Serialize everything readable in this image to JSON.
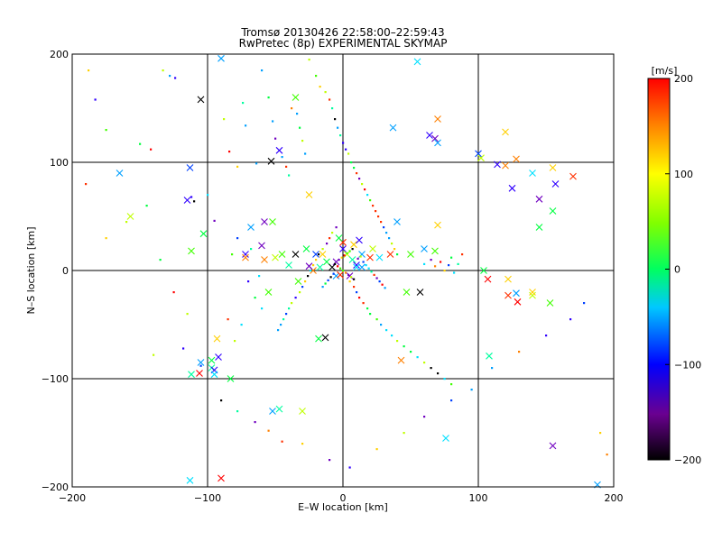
{
  "chart_data": {
    "type": "scatter",
    "title": "Tromsø 20130426 22:58:00–22:59:43",
    "subtitle": "RwPretec (8p) EXPERIMENTAL SKYMAP",
    "xlabel": "E–W location [km]",
    "ylabel": "N–S location [km]",
    "xlim": [
      -200,
      200
    ],
    "ylim": [
      -200,
      200
    ],
    "x_ticks": [
      "−200",
      "−100",
      "0",
      "100",
      "200"
    ],
    "y_ticks": [
      "−200",
      "−100",
      "0",
      "100",
      "200"
    ],
    "grid": "major gridlines at every 100 km",
    "colorbar": {
      "label": "[m/s]",
      "range": [
        -200,
        200
      ],
      "ticks": [
        "200",
        "100",
        "0",
        "−100",
        "−200"
      ],
      "colormap": "black–purple–blue–cyan–green–yellow–orange–red"
    },
    "series": [
      {
        "marker": "x (large)",
        "points": [
          [
            -165,
            90
          ],
          [
            -157,
            50
          ],
          [
            55,
            193
          ],
          [
            -105,
            158
          ],
          [
            -90,
            196
          ],
          [
            37,
            132
          ],
          [
            70,
            140
          ],
          [
            68,
            122
          ],
          [
            70,
            118
          ],
          [
            64,
            125
          ],
          [
            100,
            108
          ],
          [
            102,
            104
          ],
          [
            114,
            98
          ],
          [
            128,
            103
          ],
          [
            140,
            90
          ],
          [
            155,
            95
          ],
          [
            120,
            97
          ],
          [
            125,
            76
          ],
          [
            145,
            66
          ],
          [
            157,
            80
          ],
          [
            170,
            87
          ],
          [
            155,
            55
          ],
          [
            -113,
            95
          ],
          [
            -35,
            160
          ],
          [
            -25,
            70
          ],
          [
            -52,
            45
          ],
          [
            -58,
            45
          ],
          [
            -60,
            23
          ],
          [
            -112,
            18
          ],
          [
            -103,
            34
          ],
          [
            -72,
            15
          ],
          [
            -72,
            12
          ],
          [
            -58,
            10
          ],
          [
            -50,
            12
          ],
          [
            -45,
            15
          ],
          [
            -40,
            5
          ],
          [
            -35,
            15
          ],
          [
            -27,
            20
          ],
          [
            -20,
            15
          ],
          [
            -15,
            15
          ],
          [
            -12,
            8
          ],
          [
            -5,
            8
          ],
          [
            0,
            20
          ],
          [
            3,
            15
          ],
          [
            7,
            10
          ],
          [
            10,
            5
          ],
          [
            14,
            15
          ],
          [
            20,
            12
          ],
          [
            27,
            12
          ],
          [
            35,
            15
          ],
          [
            40,
            45
          ],
          [
            50,
            15
          ],
          [
            60,
            20
          ],
          [
            70,
            42
          ],
          [
            -55,
            -20
          ],
          [
            -33,
            -10
          ],
          [
            47,
            -20
          ],
          [
            57,
            -20
          ],
          [
            104,
            0
          ],
          [
            107,
            -8
          ],
          [
            122,
            -8
          ],
          [
            122,
            -23
          ],
          [
            128,
            -21
          ],
          [
            129,
            -29
          ],
          [
            140,
            -23
          ],
          [
            140,
            -20
          ],
          [
            153,
            -30
          ],
          [
            -93,
            -63
          ],
          [
            -92,
            -80
          ],
          [
            -97,
            -83
          ],
          [
            -97,
            -90
          ],
          [
            -95,
            -92
          ],
          [
            -95,
            -96
          ],
          [
            -105,
            -85
          ],
          [
            -106,
            -95
          ],
          [
            -112,
            -96
          ],
          [
            -83,
            -100
          ],
          [
            -47,
            -128
          ],
          [
            -52,
            -130
          ],
          [
            -30,
            -130
          ],
          [
            -18,
            -63
          ],
          [
            -13,
            -62
          ],
          [
            43,
            -83
          ],
          [
            108,
            -79
          ],
          [
            155,
            -162
          ],
          [
            -113,
            -194
          ],
          [
            -90,
            -192
          ],
          [
            76,
            -155
          ],
          [
            188,
            -198
          ],
          [
            68,
            18
          ],
          [
            -115,
            65
          ],
          [
            -68,
            40
          ],
          [
            120,
            128
          ],
          [
            -47,
            111
          ],
          [
            -53,
            101
          ],
          [
            145,
            40
          ],
          [
            -22,
            0
          ],
          [
            -17,
            3
          ],
          [
            -5,
            -5
          ],
          [
            5,
            -5
          ],
          [
            10,
            3
          ],
          [
            14,
            3
          ],
          [
            0,
            26
          ],
          [
            -8,
            3
          ],
          [
            -2,
            -4
          ],
          [
            8,
            24
          ],
          [
            -3,
            30
          ],
          [
            12,
            28
          ],
          [
            22,
            20
          ],
          [
            -25,
            4
          ]
        ]
      },
      {
        "marker": "dot (small)",
        "points": [
          [
            -188,
            185
          ],
          [
            -183,
            158
          ],
          [
            -175,
            130
          ],
          [
            -150,
            117
          ],
          [
            -142,
            112
          ],
          [
            -133,
            185
          ],
          [
            -128,
            180
          ],
          [
            -124,
            178
          ],
          [
            -112,
            68
          ],
          [
            -110,
            64
          ],
          [
            -100,
            70
          ],
          [
            -95,
            46
          ],
          [
            -88,
            140
          ],
          [
            -84,
            110
          ],
          [
            -78,
            96
          ],
          [
            -74,
            155
          ],
          [
            -72,
            134
          ],
          [
            -64,
            99
          ],
          [
            -60,
            185
          ],
          [
            -55,
            160
          ],
          [
            -52,
            138
          ],
          [
            -50,
            122
          ],
          [
            -45,
            105
          ],
          [
            -42,
            96
          ],
          [
            -40,
            88
          ],
          [
            -38,
            150
          ],
          [
            -34,
            145
          ],
          [
            -32,
            132
          ],
          [
            -30,
            120
          ],
          [
            -28,
            108
          ],
          [
            -25,
            195
          ],
          [
            -20,
            180
          ],
          [
            -17,
            170
          ],
          [
            -13,
            165
          ],
          [
            -10,
            158
          ],
          [
            -8,
            150
          ],
          [
            -6,
            140
          ],
          [
            -4,
            132
          ],
          [
            -2,
            125
          ],
          [
            0,
            118
          ],
          [
            2,
            112
          ],
          [
            4,
            108
          ],
          [
            6,
            100
          ],
          [
            8,
            95
          ],
          [
            10,
            90
          ],
          [
            12,
            85
          ],
          [
            14,
            80
          ],
          [
            16,
            75
          ],
          [
            18,
            70
          ],
          [
            20,
            65
          ],
          [
            22,
            60
          ],
          [
            24,
            55
          ],
          [
            26,
            50
          ],
          [
            28,
            45
          ],
          [
            30,
            40
          ],
          [
            32,
            35
          ],
          [
            34,
            30
          ],
          [
            36,
            25
          ],
          [
            38,
            20
          ],
          [
            40,
            15
          ],
          [
            -5,
            40
          ],
          [
            -8,
            35
          ],
          [
            -10,
            30
          ],
          [
            -12,
            25
          ],
          [
            -15,
            20
          ],
          [
            -18,
            15
          ],
          [
            -20,
            10
          ],
          [
            -22,
            5
          ],
          [
            -24,
            0
          ],
          [
            -26,
            -5
          ],
          [
            -28,
            -10
          ],
          [
            -30,
            -15
          ],
          [
            -32,
            -20
          ],
          [
            -35,
            -25
          ],
          [
            -38,
            -30
          ],
          [
            -40,
            -35
          ],
          [
            -42,
            -40
          ],
          [
            -44,
            -45
          ],
          [
            -46,
            -50
          ],
          [
            -48,
            -55
          ],
          [
            5,
            -10
          ],
          [
            8,
            -15
          ],
          [
            10,
            -20
          ],
          [
            12,
            -25
          ],
          [
            15,
            -30
          ],
          [
            18,
            -35
          ],
          [
            20,
            -40
          ],
          [
            25,
            -45
          ],
          [
            28,
            -50
          ],
          [
            32,
            -55
          ],
          [
            36,
            -60
          ],
          [
            40,
            -65
          ],
          [
            45,
            -70
          ],
          [
            50,
            -75
          ],
          [
            55,
            -80
          ],
          [
            60,
            -85
          ],
          [
            65,
            -90
          ],
          [
            70,
            -95
          ],
          [
            75,
            -100
          ],
          [
            80,
            -105
          ],
          [
            -3,
            10
          ],
          [
            -1,
            12
          ],
          [
            1,
            14
          ],
          [
            3,
            16
          ],
          [
            5,
            18
          ],
          [
            7,
            20
          ],
          [
            -6,
            6
          ],
          [
            -4,
            4
          ],
          [
            -2,
            2
          ],
          [
            0,
            0
          ],
          [
            2,
            -2
          ],
          [
            4,
            -4
          ],
          [
            6,
            -6
          ],
          [
            8,
            -8
          ],
          [
            -7,
            -3
          ],
          [
            -9,
            -6
          ],
          [
            -11,
            -9
          ],
          [
            -13,
            -12
          ],
          [
            -15,
            -15
          ],
          [
            11,
            11
          ],
          [
            13,
            13
          ],
          [
            15,
            8
          ],
          [
            17,
            5
          ],
          [
            19,
            2
          ],
          [
            21,
            -1
          ],
          [
            23,
            -4
          ],
          [
            25,
            -7
          ],
          [
            27,
            -10
          ],
          [
            29,
            -13
          ],
          [
            31,
            -16
          ],
          [
            -140,
            -78
          ],
          [
            -118,
            -72
          ],
          [
            -105,
            -88
          ],
          [
            -90,
            -120
          ],
          [
            -78,
            -130
          ],
          [
            -65,
            -140
          ],
          [
            -55,
            -148
          ],
          [
            -45,
            -158
          ],
          [
            -30,
            -160
          ],
          [
            -10,
            -175
          ],
          [
            5,
            -182
          ],
          [
            25,
            -165
          ],
          [
            45,
            -150
          ],
          [
            60,
            -135
          ],
          [
            80,
            -120
          ],
          [
            95,
            -110
          ],
          [
            110,
            -90
          ],
          [
            130,
            -75
          ],
          [
            150,
            -60
          ],
          [
            168,
            -45
          ],
          [
            178,
            -30
          ],
          [
            190,
            -150
          ],
          [
            195,
            -170
          ],
          [
            -190,
            80
          ],
          [
            -175,
            30
          ],
          [
            -160,
            45
          ],
          [
            -145,
            60
          ],
          [
            -135,
            10
          ],
          [
            -125,
            -20
          ],
          [
            -115,
            -40
          ],
          [
            60,
            6
          ],
          [
            65,
            10
          ],
          [
            68,
            4
          ],
          [
            72,
            8
          ],
          [
            75,
            0
          ],
          [
            78,
            5
          ],
          [
            80,
            12
          ],
          [
            82,
            -2
          ],
          [
            85,
            6
          ],
          [
            88,
            15
          ],
          [
            -70,
            -10
          ],
          [
            -65,
            -25
          ],
          [
            -60,
            -35
          ],
          [
            -75,
            -50
          ],
          [
            -80,
            -65
          ],
          [
            -85,
            -45
          ],
          [
            -62,
            -5
          ],
          [
            -68,
            20
          ],
          [
            -78,
            30
          ],
          [
            -82,
            15
          ]
        ]
      }
    ]
  }
}
